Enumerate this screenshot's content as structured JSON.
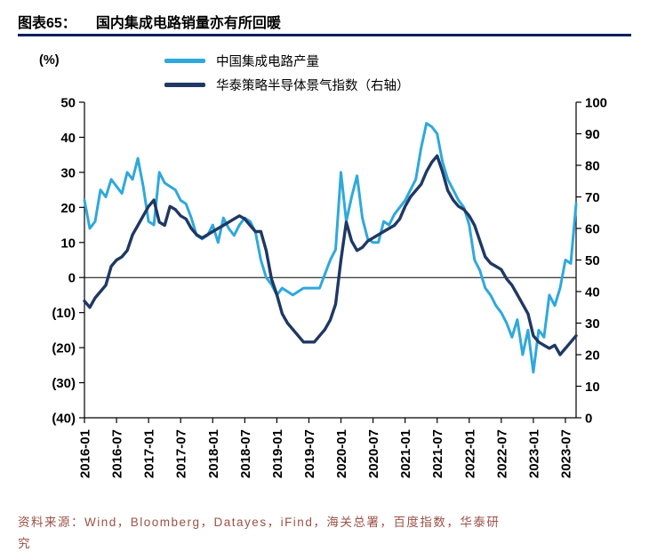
{
  "header": {
    "tag": "图表65：",
    "title": "国内集成电路销量亦有所回暖"
  },
  "unit_label": "(%)",
  "footer": {
    "lines": [
      "资料来源：Wind，Bloomberg，Datayes，iFind，海关总署，百度指数，华泰研",
      "究"
    ]
  },
  "chart_data": {
    "type": "line",
    "title": "国内集成电路销量亦有所回暖",
    "x_monthly_start": "2016-01",
    "x_tick_every_months": 6,
    "x_ticks": [
      "2016-01",
      "2016-07",
      "2017-01",
      "2017-07",
      "2018-01",
      "2018-07",
      "2019-01",
      "2019-07",
      "2020-01",
      "2020-07",
      "2021-01",
      "2021-07",
      "2022-01",
      "2022-07",
      "2023-01",
      "2023-07"
    ],
    "left_axis": {
      "label": "(%)",
      "min": -40,
      "max": 50,
      "tick_values": [
        50,
        40,
        30,
        20,
        10,
        0,
        -10,
        -20,
        -30,
        -40
      ],
      "tick_labels": [
        "50",
        "40",
        "30",
        "20",
        "10",
        "0",
        "(10)",
        "(20)",
        "(30)",
        "(40)"
      ]
    },
    "right_axis": {
      "min": 0,
      "max": 100,
      "tick_values": [
        100,
        90,
        80,
        70,
        60,
        50,
        40,
        30,
        20,
        10,
        0
      ],
      "tick_labels": [
        "100",
        "90",
        "80",
        "70",
        "60",
        "50",
        "40",
        "30",
        "20",
        "10",
        "0"
      ]
    },
    "legend_position": "top",
    "grid": false,
    "series": [
      {
        "name": "中国集成电路产量",
        "axis": "left",
        "color": "#2FA8DC",
        "values": [
          22,
          14,
          16,
          25,
          23,
          28,
          26,
          24,
          30,
          28,
          34,
          26,
          16,
          15,
          30,
          27,
          26,
          25,
          22,
          21,
          17,
          12,
          11,
          12,
          15,
          10,
          17,
          14,
          12,
          15,
          17,
          16,
          13,
          5,
          0,
          -2,
          -5,
          -3,
          -4,
          -5,
          -4,
          -3,
          -3,
          -3,
          -3,
          1,
          5,
          8,
          30,
          16,
          23,
          29,
          17,
          11,
          10,
          10,
          16,
          15,
          18,
          20,
          22,
          25,
          28,
          37,
          44,
          43,
          41,
          33,
          28,
          25,
          22,
          20,
          15,
          5,
          2,
          -3,
          -5,
          -8,
          -10,
          -13,
          -17,
          -12,
          -22,
          -15,
          -27,
          -15,
          -17,
          -5,
          -8,
          -3,
          5,
          4,
          21
        ]
      },
      {
        "name": "华泰策略半导体景气指数（右轴）",
        "axis": "right",
        "color": "#1F3864",
        "values": [
          37,
          35,
          38,
          40,
          42,
          48,
          50,
          51,
          53,
          58,
          61,
          64,
          67,
          69,
          62,
          61,
          67,
          66,
          64,
          63,
          60,
          58,
          57,
          58,
          59,
          60,
          61,
          62,
          63,
          64,
          63,
          61,
          59,
          59,
          53,
          44,
          39,
          33,
          30,
          28,
          26,
          24,
          24,
          24,
          26,
          28,
          31,
          36,
          50,
          62,
          56,
          53,
          54,
          56,
          57,
          58,
          59,
          60,
          61,
          63,
          67,
          70,
          72,
          74,
          78,
          81,
          83,
          78,
          72,
          69,
          67,
          66,
          64,
          61,
          56,
          51,
          49,
          48,
          47,
          44,
          42,
          39,
          36,
          33,
          26,
          24,
          23,
          22,
          23,
          20,
          22,
          24,
          26
        ]
      }
    ]
  }
}
